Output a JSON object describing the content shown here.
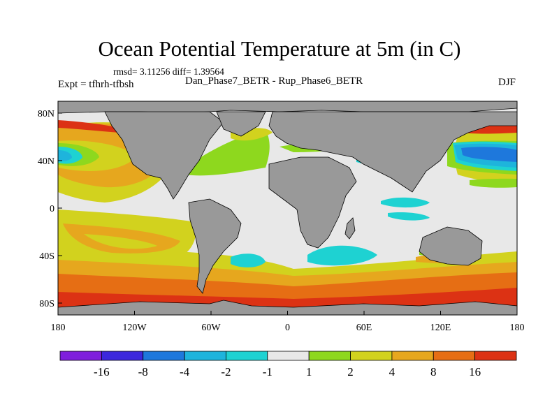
{
  "title": "Ocean Potential Temperature at 5m (in C)",
  "stats": "rmsd= 3.11256 diff= 1.39564",
  "expt": "Expt = tfhrh-tfbsh",
  "subtitle": "Dan_Phase7_BETR - Rup_Phase6_BETR",
  "season": "DJF",
  "colors": {
    "land": "#999999",
    "white_band": "#e8e8e8",
    "bins": [
      "#7f1fdc",
      "#3c28dc",
      "#1e78dc",
      "#1eb4dc",
      "#1ed2d2",
      "#e8e8e8",
      "#8ed81e",
      "#d2d21e",
      "#e6a71e",
      "#e66e14",
      "#dc3214"
    ]
  },
  "chart_data": {
    "type": "heatmap",
    "projection": "cylindrical-equidistant",
    "variable": "Ocean Potential Temperature at 5m",
    "units": "C",
    "x_range": [
      -180,
      180
    ],
    "y_range": [
      -90,
      90
    ],
    "x_ticks": [
      {
        "value": -180,
        "label": "180"
      },
      {
        "value": -120,
        "label": "120W"
      },
      {
        "value": -60,
        "label": "60W"
      },
      {
        "value": 0,
        "label": "0"
      },
      {
        "value": 60,
        "label": "60E"
      },
      {
        "value": 120,
        "label": "120E"
      },
      {
        "value": 180,
        "label": "180"
      }
    ],
    "y_ticks": [
      {
        "value": 80,
        "label": "80N"
      },
      {
        "value": 40,
        "label": "40N"
      },
      {
        "value": 0,
        "label": "0"
      },
      {
        "value": -40,
        "label": "40S"
      },
      {
        "value": -80,
        "label": "80S"
      }
    ],
    "colorbar": {
      "levels": [
        -16,
        -8,
        -4,
        -2,
        -1,
        1,
        2,
        4,
        8,
        16
      ],
      "labels": [
        "-16",
        "-8",
        "-4",
        "-2",
        "-1",
        "1",
        "2",
        "4",
        "8",
        "16"
      ]
    }
  }
}
